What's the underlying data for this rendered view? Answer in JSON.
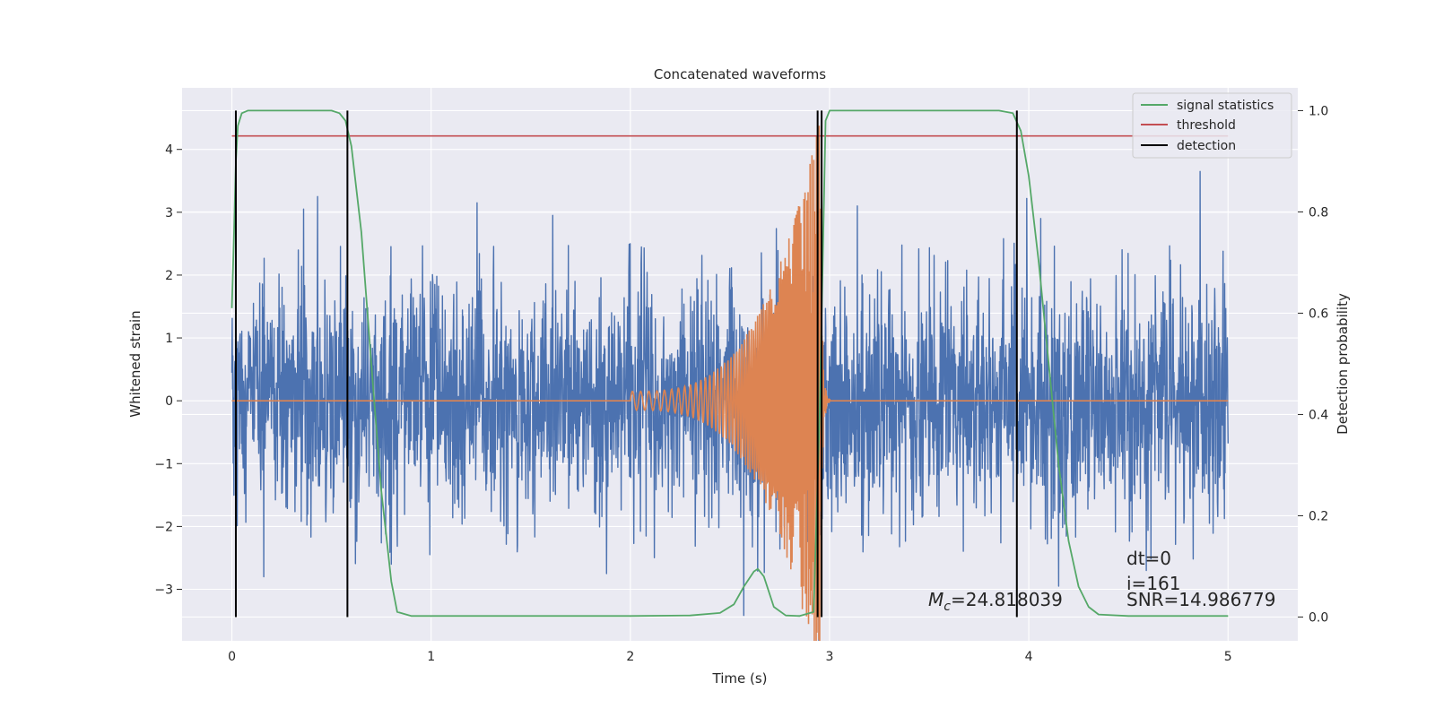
{
  "chart_data": {
    "type": "line",
    "title": "Concatenated waveforms",
    "xlabel": "Time (s)",
    "ylabel": "Whitened strain",
    "ylabel_right": "Detection probability",
    "xlim": [
      -0.25,
      5.35
    ],
    "ylim": [
      -3.82,
      4.98
    ],
    "ylim_right": [
      -0.047,
      1.045
    ],
    "x_ticks": [
      "0",
      "1",
      "2",
      "3",
      "4",
      "5"
    ],
    "y_ticks": [
      "−3",
      "−2",
      "−1",
      "0",
      "1",
      "2",
      "3",
      "4"
    ],
    "y_ticks_right": [
      "0.0",
      "0.2",
      "0.4",
      "0.6",
      "0.8",
      "1.0"
    ],
    "grid": true,
    "legend_position": "top-right",
    "colors": {
      "background": "#eaeaf2",
      "strain": "#4c72b0",
      "template": "#dd8452",
      "statistic": "#55a868",
      "threshold": "#c44e52",
      "detection": "#000000"
    },
    "legend": [
      "signal statistics",
      "threshold",
      "detection"
    ],
    "series": [
      {
        "name": "signal statistics",
        "axis": "right",
        "x": [
          0.0,
          0.01,
          0.02,
          0.03,
          0.05,
          0.08,
          0.12,
          0.3,
          0.5,
          0.54,
          0.57,
          0.6,
          0.65,
          0.7,
          0.75,
          0.8,
          0.83,
          0.9,
          1.2,
          1.6,
          2.0,
          2.3,
          2.45,
          2.52,
          2.57,
          2.62,
          2.64,
          2.67,
          2.72,
          2.78,
          2.85,
          2.92,
          2.95,
          2.98,
          3.0,
          3.2,
          3.5,
          3.85,
          3.92,
          3.96,
          4.0,
          4.05,
          4.1,
          4.15,
          4.2,
          4.25,
          4.3,
          4.35,
          4.5,
          4.8,
          5.0
        ],
        "y": [
          0.61,
          0.75,
          0.9,
          0.97,
          0.995,
          1.0,
          1.0,
          1.0,
          1.0,
          0.995,
          0.98,
          0.93,
          0.76,
          0.5,
          0.25,
          0.07,
          0.01,
          0.002,
          0.002,
          0.002,
          0.002,
          0.003,
          0.008,
          0.025,
          0.06,
          0.09,
          0.095,
          0.08,
          0.02,
          0.003,
          0.002,
          0.01,
          0.4,
          0.98,
          1.0,
          1.0,
          1.0,
          1.0,
          0.995,
          0.96,
          0.87,
          0.7,
          0.5,
          0.3,
          0.15,
          0.06,
          0.02,
          0.005,
          0.002,
          0.002,
          0.002
        ]
      },
      {
        "name": "threshold",
        "axis": "right",
        "x": [
          0.0,
          5.0
        ],
        "y": [
          0.95,
          0.95
        ]
      },
      {
        "name": "detection",
        "axis": "left",
        "x_positions": [
          0.02,
          0.58,
          2.94,
          2.96,
          3.94
        ]
      },
      {
        "name": "",
        "axis": "left",
        "description_type": "noisy strain",
        "x_range": [
          0.0,
          5.0
        ],
        "samples": 3000,
        "sigma": 1.0,
        "spikes": [
          {
            "x": 0.43,
            "y": 3.25
          },
          {
            "x": 0.36,
            "y": 3.05
          },
          {
            "x": 1.23,
            "y": 3.15
          },
          {
            "x": 1.61,
            "y": 2.95
          },
          {
            "x": 3.14,
            "y": 3.1
          },
          {
            "x": 3.99,
            "y": 3.22
          },
          {
            "x": 4.06,
            "y": 2.9
          },
          {
            "x": 4.86,
            "y": 3.65
          },
          {
            "x": 0.16,
            "y": -2.8
          },
          {
            "x": 2.57,
            "y": -3.35
          },
          {
            "x": 2.64,
            "y": -3.15
          },
          {
            "x": 1.88,
            "y": -2.75
          },
          {
            "x": 4.15,
            "y": -2.95
          },
          {
            "x": 4.59,
            "y": -2.7
          },
          {
            "x": 0.8,
            "y": -2.6
          }
        ]
      },
      {
        "name": "",
        "axis": "left",
        "description_type": "chirp template",
        "t_start": 2.0,
        "t_merge": 2.95,
        "t_end": 3.0,
        "amp_start": 0.15,
        "amp_peak": 4.45,
        "freq_start": 24,
        "freq_end": 230
      }
    ],
    "annotations": {
      "mc_prefix": "M",
      "mc_sub": "c",
      "mc_value": "=24.818039",
      "dt": "dt=0",
      "index": "i=161",
      "snr": "SNR=14.986779"
    }
  }
}
